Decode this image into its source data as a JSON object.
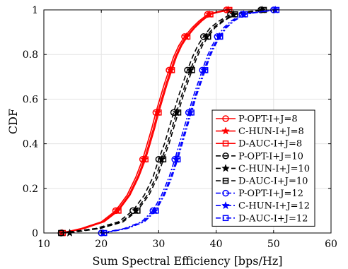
{
  "chart_data": {
    "type": "line",
    "title": "",
    "xlabel": "Sum Spectral Efficiency [bps/Hz]",
    "ylabel": "CDF",
    "xlim": [
      10,
      60
    ],
    "ylim": [
      0,
      1
    ],
    "xticks": [
      "10",
      "20",
      "30",
      "40",
      "50",
      "60"
    ],
    "yticks": [
      "0",
      "0.2",
      "0.4",
      "0.6",
      "0.8",
      "1"
    ],
    "grid": true,
    "legend_position": "bottom-right",
    "series": [
      {
        "name": "P-OPT-I+J=8",
        "color": "#ff0000",
        "dash": "solid",
        "marker": "circle",
        "x": [
          13.0,
          16.5,
          20.0,
          22.5,
          24.5,
          26.0,
          27.2,
          28.0,
          28.8,
          29.5,
          30.3,
          31.0,
          31.8,
          32.6,
          33.5,
          34.5,
          35.8,
          37.0,
          38.5,
          40.0,
          41.8
        ],
        "y": [
          0.0,
          0.02,
          0.05,
          0.1,
          0.17,
          0.25,
          0.33,
          0.4,
          0.47,
          0.54,
          0.61,
          0.67,
          0.73,
          0.79,
          0.84,
          0.88,
          0.92,
          0.95,
          0.98,
          0.99,
          1.0
        ]
      },
      {
        "name": "C-HUN-I+J=8",
        "color": "#ff0000",
        "dash": "solid",
        "marker": "star",
        "x": [
          13.2,
          16.8,
          20.3,
          22.8,
          24.8,
          26.3,
          27.5,
          28.3,
          29.1,
          29.8,
          30.6,
          31.3,
          32.1,
          32.9,
          33.8,
          34.8,
          36.1,
          37.3,
          38.8,
          40.3,
          42.1
        ],
        "y": [
          0.0,
          0.02,
          0.05,
          0.1,
          0.17,
          0.25,
          0.33,
          0.4,
          0.47,
          0.54,
          0.61,
          0.67,
          0.73,
          0.79,
          0.84,
          0.88,
          0.92,
          0.95,
          0.98,
          0.99,
          1.0
        ]
      },
      {
        "name": "D-AUC-I+J=8",
        "color": "#ff0000",
        "dash": "solid",
        "marker": "square",
        "x": [
          13.3,
          17.0,
          20.5,
          23.0,
          25.0,
          26.5,
          27.7,
          28.5,
          29.3,
          30.0,
          30.8,
          31.5,
          32.3,
          33.1,
          34.0,
          35.0,
          36.3,
          37.5,
          39.0,
          40.5,
          42.3
        ],
        "y": [
          0.0,
          0.02,
          0.05,
          0.1,
          0.17,
          0.25,
          0.33,
          0.4,
          0.47,
          0.54,
          0.61,
          0.67,
          0.73,
          0.79,
          0.84,
          0.88,
          0.92,
          0.95,
          0.98,
          0.99,
          1.0
        ]
      },
      {
        "name": "P-OPT-I+J=10",
        "color": "#000000",
        "dash": "dash",
        "marker": "circle",
        "x": [
          13.0,
          19.0,
          23.0,
          25.5,
          27.5,
          29.0,
          30.0,
          31.0,
          31.8,
          32.6,
          33.4,
          34.2,
          35.0,
          35.9,
          36.8,
          37.8,
          39.0,
          40.5,
          42.5,
          45.0,
          47.8
        ],
        "y": [
          0.0,
          0.02,
          0.05,
          0.1,
          0.17,
          0.25,
          0.33,
          0.4,
          0.47,
          0.54,
          0.61,
          0.67,
          0.73,
          0.79,
          0.84,
          0.88,
          0.92,
          0.95,
          0.98,
          0.99,
          1.0
        ]
      },
      {
        "name": "C-HUN-I+J=10",
        "color": "#000000",
        "dash": "dash",
        "marker": "star",
        "x": [
          14.5,
          19.5,
          23.5,
          26.0,
          28.0,
          29.5,
          30.5,
          31.5,
          32.3,
          33.1,
          33.9,
          34.7,
          35.5,
          36.4,
          37.3,
          38.3,
          39.5,
          41.0,
          43.0,
          45.5,
          48.0
        ],
        "y": [
          0.0,
          0.02,
          0.05,
          0.1,
          0.17,
          0.25,
          0.33,
          0.4,
          0.47,
          0.54,
          0.61,
          0.67,
          0.73,
          0.79,
          0.84,
          0.88,
          0.92,
          0.95,
          0.98,
          0.99,
          1.0
        ]
      },
      {
        "name": "D-AUC-I+J=10",
        "color": "#000000",
        "dash": "dash",
        "marker": "square",
        "x": [
          13.0,
          19.8,
          23.8,
          26.3,
          28.3,
          29.8,
          30.8,
          31.8,
          32.6,
          33.4,
          34.2,
          35.0,
          35.8,
          36.7,
          37.6,
          38.6,
          39.8,
          41.3,
          43.3,
          45.8,
          48.3
        ],
        "y": [
          0.0,
          0.02,
          0.05,
          0.1,
          0.17,
          0.25,
          0.33,
          0.4,
          0.47,
          0.54,
          0.61,
          0.67,
          0.73,
          0.79,
          0.84,
          0.88,
          0.92,
          0.95,
          0.98,
          0.99,
          1.0
        ]
      },
      {
        "name": "P-OPT-I+J=12",
        "color": "#0000ff",
        "dash": "dashdot",
        "marker": "circle",
        "x": [
          20.0,
          24.0,
          27.0,
          29.0,
          30.5,
          31.8,
          32.8,
          33.6,
          34.4,
          35.2,
          36.0,
          36.8,
          37.6,
          38.4,
          39.3,
          40.2,
          41.3,
          42.6,
          44.5,
          47.0,
          50.0
        ],
        "y": [
          0.0,
          0.02,
          0.05,
          0.1,
          0.17,
          0.25,
          0.33,
          0.4,
          0.47,
          0.54,
          0.61,
          0.67,
          0.73,
          0.79,
          0.84,
          0.88,
          0.92,
          0.95,
          0.98,
          0.99,
          1.0
        ]
      },
      {
        "name": "C-HUN-I+J=12",
        "color": "#0000ff",
        "dash": "dashdot",
        "marker": "star",
        "x": [
          20.3,
          24.3,
          27.3,
          29.3,
          30.8,
          32.1,
          33.1,
          33.9,
          34.7,
          35.5,
          36.3,
          37.1,
          37.9,
          38.7,
          39.6,
          40.5,
          41.6,
          42.9,
          44.8,
          47.3,
          50.3
        ],
        "y": [
          0.0,
          0.02,
          0.05,
          0.1,
          0.17,
          0.25,
          0.33,
          0.4,
          0.47,
          0.54,
          0.61,
          0.67,
          0.73,
          0.79,
          0.84,
          0.88,
          0.92,
          0.95,
          0.98,
          0.99,
          1.0
        ]
      },
      {
        "name": "D-AUC-I+J=12",
        "color": "#0000ff",
        "dash": "dashdot",
        "marker": "square",
        "x": [
          20.5,
          24.5,
          27.5,
          29.5,
          31.0,
          32.3,
          33.3,
          34.1,
          34.9,
          35.7,
          36.5,
          37.3,
          38.1,
          38.9,
          39.8,
          40.7,
          41.8,
          43.1,
          45.0,
          47.5,
          50.5
        ],
        "y": [
          0.0,
          0.02,
          0.05,
          0.1,
          0.17,
          0.25,
          0.33,
          0.4,
          0.47,
          0.54,
          0.61,
          0.67,
          0.73,
          0.79,
          0.84,
          0.88,
          0.92,
          0.95,
          0.98,
          0.99,
          1.0
        ]
      }
    ]
  }
}
